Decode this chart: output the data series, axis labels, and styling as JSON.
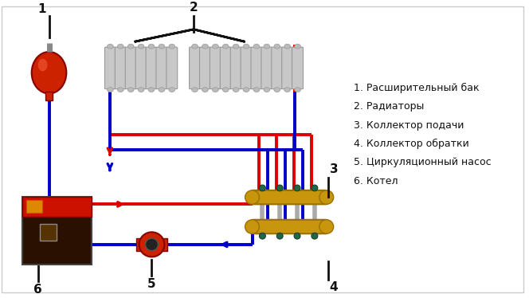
{
  "background_color": "#ffffff",
  "legend_items": [
    "1. Расширительный бак",
    "2. Радиаторы",
    "3. Коллектор подачи",
    "4. Коллектор обратки",
    "5. Циркуляционный насос",
    "6. Котел"
  ],
  "red": "#dd0000",
  "blue": "#0000cc",
  "black": "#111111",
  "brass": "#c8960c",
  "brass_dark": "#9a7000",
  "tank_red": "#cc2200",
  "boiler_dark": "#2a1000",
  "boiler_red": "#cc1100",
  "gray_rad": "#c8c8c8",
  "gray_rad_dark": "#999999",
  "pump_red": "#cc2200",
  "lw_pipe": 2.8,
  "lw_label": 2.0
}
